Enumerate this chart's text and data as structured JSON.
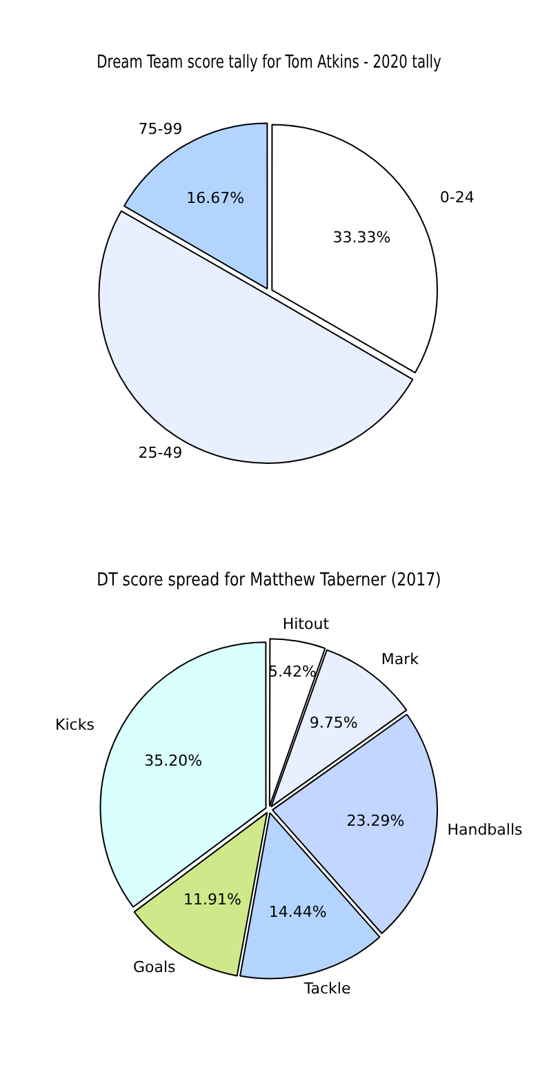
{
  "chart_data": [
    {
      "type": "pie",
      "title": "Dream Team score tally for Tom Atkins - 2020 tally",
      "categories": [
        "0-24",
        "25-49",
        "75-99"
      ],
      "values": [
        33.33,
        50,
        16.67
      ],
      "colors": [
        "#ffffff",
        "#e8f0ff",
        "#b3d4ff"
      ],
      "value_labels": [
        "33.33%",
        null,
        "16.67%"
      ]
    },
    {
      "type": "pie",
      "title": "DT score spread for Matthew Taberner (2017)",
      "categories": [
        "Hitout",
        "Mark",
        "Handballs",
        "Tackle",
        "Goals",
        "Kicks"
      ],
      "values": [
        5.42,
        9.75,
        23.29,
        14.44,
        11.91,
        35.2
      ],
      "colors": [
        "#ffffff",
        "#e8f0ff",
        "#c2d6ff",
        "#b3d4ff",
        "#cfe98a",
        "#d9ffff"
      ],
      "value_labels": [
        "5.42%",
        "9.75%",
        "23.29%",
        "14.44%",
        "11.91%",
        "35.20%"
      ]
    }
  ]
}
